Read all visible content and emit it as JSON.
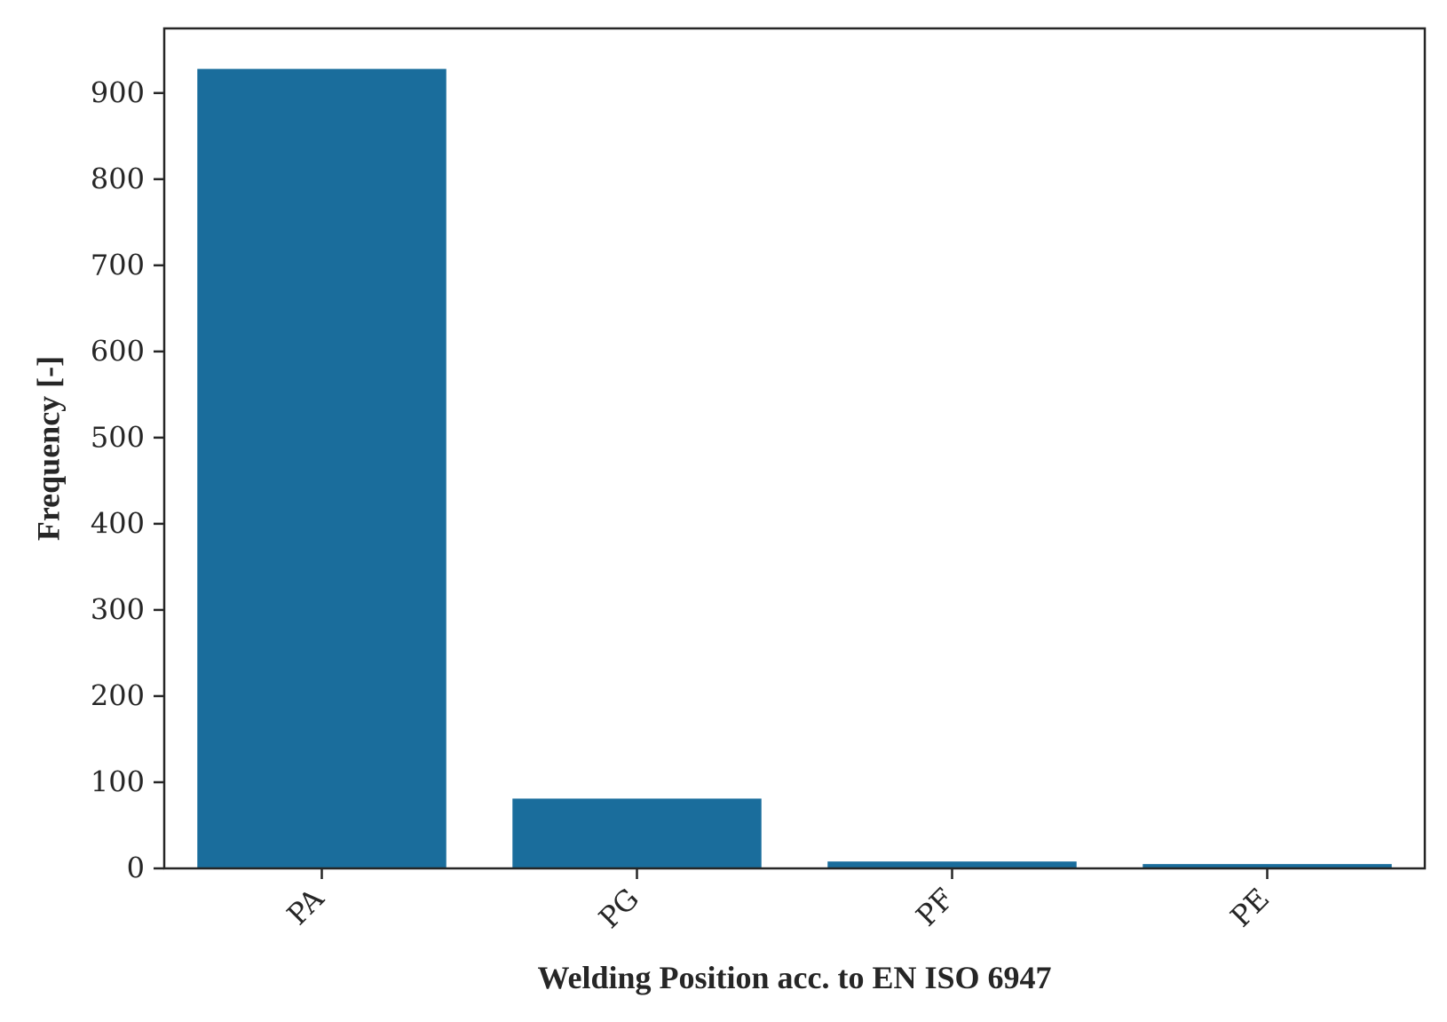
{
  "chart_data": {
    "type": "bar",
    "categories": [
      "PA",
      "PG",
      "PF",
      "PE"
    ],
    "values": [
      928,
      81,
      8,
      5
    ],
    "xlabel": "Welding Position acc. to EN ISO 6947",
    "ylabel": "Frequency [-]",
    "ylim": [
      0,
      975
    ],
    "yticks": [
      0,
      100,
      200,
      300,
      400,
      500,
      600,
      700,
      800,
      900
    ],
    "grid": false,
    "bar_color": "#1a6d9c",
    "axis_color": "#262626"
  }
}
